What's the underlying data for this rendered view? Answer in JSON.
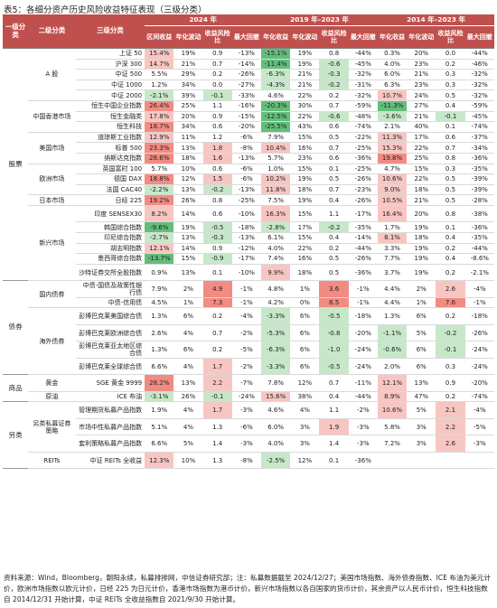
{
  "title": "表5：各细分资产历史风险收益特征表现（三级分类）",
  "header": {
    "groups": [
      "2024 年",
      "2019 年–2023 年",
      "2014 年–2023 年"
    ],
    "col_level1": "一级分类",
    "col_level2": "二级分类",
    "col_level3": "三级分类",
    "metrics": [
      "区间收益",
      "年化波动",
      "收益风险比",
      "最大回撤",
      "年化收益",
      "年化波动",
      "收益风险比",
      "最大回撤",
      "年化收益",
      "年化波动",
      "收益风险比",
      "最大回撤"
    ]
  },
  "rows": [
    {
      "l1": "股票",
      "l2": "A 股",
      "l3": "上证 50",
      "v": [
        "15.4%",
        "19%",
        "0.9",
        "-13%",
        "-15.1%",
        "19%",
        "0.8",
        "-44%",
        "0.3%",
        "20%",
        "0.0",
        "-44%"
      ]
    },
    {
      "l1": "",
      "l2": "",
      "l3": "沪深 300",
      "v": [
        "14.7%",
        "21%",
        "0.7",
        "-14%",
        "-11.4%",
        "19%",
        "-0.6",
        "-45%",
        "4.0%",
        "23%",
        "0.2",
        "-46%"
      ]
    },
    {
      "l1": "",
      "l2": "",
      "l3": "中证 500",
      "v": [
        "5.5%",
        "29%",
        "0.2",
        "-26%",
        "-6.3%",
        "21%",
        "-0.3",
        "-32%",
        "6.0%",
        "21%",
        "0.3",
        "-32%"
      ]
    },
    {
      "l1": "",
      "l2": "",
      "l3": "中证 1000",
      "v": [
        "1.2%",
        "34%",
        "0.0",
        "-27%",
        "-4.3%",
        "21%",
        "-0.2",
        "-31%",
        "6.3%",
        "23%",
        "0.3",
        "-32%"
      ]
    },
    {
      "l1": "",
      "l2": "",
      "l3": "中证 2000",
      "v": [
        "-2.1%",
        "39%",
        "-0.1",
        "-33%",
        "4.6%",
        "22%",
        "0.2",
        "-32%",
        "10.7%",
        "24%",
        "0.5",
        "-32%"
      ]
    },
    {
      "l1": "",
      "l2": "中国香港市场",
      "l3": "恒生中国企业指数",
      "v": [
        "26.4%",
        "25%",
        "1.1",
        "-16%",
        "-20.3%",
        "30%",
        "0.7",
        "-59%",
        "-11.3%",
        "27%",
        "0.4",
        "-59%"
      ]
    },
    {
      "l1": "",
      "l2": "",
      "l3": "恒生金融类",
      "v": [
        "17.8%",
        "20%",
        "0.9",
        "-15%",
        "-12.5%",
        "22%",
        "-0.6",
        "-48%",
        "-3.6%",
        "21%",
        "-0.1",
        "-45%"
      ]
    },
    {
      "l1": "",
      "l2": "",
      "l3": "恒生科技",
      "v": [
        "18.7%",
        "34%",
        "0.6",
        "-20%",
        "-25.5%",
        "43%",
        "0.6",
        "-74%",
        "2.1%",
        "40%",
        "0.1",
        "-74%"
      ]
    },
    {
      "l1": "",
      "l2": "美国市场",
      "l3": "道琼斯工业指数",
      "v": [
        "12.9%",
        "11%",
        "1.2",
        "-6%",
        "7.9%",
        "15%",
        "0.5",
        "-22%",
        "11.3%",
        "17%",
        "0.6",
        "-37%"
      ]
    },
    {
      "l1": "",
      "l2": "",
      "l3": "标普 500",
      "v": [
        "23.3%",
        "13%",
        "1.8",
        "-8%",
        "10.4%",
        "16%",
        "0.7",
        "-25%",
        "15.3%",
        "22%",
        "0.7",
        "-34%"
      ]
    },
    {
      "l1": "",
      "l2": "",
      "l3": "纳斯达克指数",
      "v": [
        "28.6%",
        "18%",
        "1.6",
        "-13%",
        "5.7%",
        "23%",
        "0.6",
        "-36%",
        "19.8%",
        "25%",
        "0.8",
        "-36%"
      ]
    },
    {
      "l1": "",
      "l2": "欧洲市场",
      "l3": "英国富时 100",
      "v": [
        "5.7%",
        "10%",
        "0.6",
        "-6%",
        "1.0%",
        "15%",
        "0.1",
        "-25%",
        "4.7%",
        "15%",
        "0.3",
        "-35%"
      ]
    },
    {
      "l1": "",
      "l2": "",
      "l3": "德国 DAX",
      "v": [
        "18.8%",
        "12%",
        "1.5",
        "-6%",
        "10.2%",
        "19%",
        "0.5",
        "-26%",
        "10.6%",
        "22%",
        "0.5",
        "-39%"
      ]
    },
    {
      "l1": "",
      "l2": "",
      "l3": "法国 CAC40",
      "v": [
        "-2.2%",
        "13%",
        "-0.2",
        "-13%",
        "11.8%",
        "18%",
        "0.7",
        "-23%",
        "9.0%",
        "18%",
        "0.5",
        "-39%"
      ]
    },
    {
      "l1": "",
      "l2": "日本市场",
      "l3": "日经 225",
      "v": [
        "19.2%",
        "26%",
        "0.8",
        "-25%",
        "7.5%",
        "19%",
        "0.4",
        "-26%",
        "10.5%",
        "21%",
        "0.5",
        "-28%"
      ]
    },
    {
      "l1": "",
      "l2": "新兴市场",
      "l3": "印度 SENSEX30",
      "v": [
        "8.2%",
        "14%",
        "0.6",
        "-10%",
        "16.3%",
        "15%",
        "1.1",
        "-17%",
        "16.4%",
        "20%",
        "0.8",
        "-38%"
      ]
    },
    {
      "l1": "",
      "l2": "",
      "l3": "韩国综合指数",
      "v": [
        "-9.6%",
        "19%",
        "-0.5",
        "-18%",
        "-2.8%",
        "17%",
        "-0.2",
        "-35%",
        "1.7%",
        "19%",
        "0.1",
        "-36%"
      ]
    },
    {
      "l1": "",
      "l2": "",
      "l3": "印尼综合指数",
      "v": [
        "-2.7%",
        "13%",
        "-0.3",
        "-13%",
        "6.1%",
        "15%",
        "0.4",
        "-14%",
        "8.1%",
        "18%",
        "0.4",
        "-35%"
      ]
    },
    {
      "l1": "",
      "l2": "",
      "l3": "胡志明指数",
      "v": [
        "12.1%",
        "14%",
        "0.9",
        "-12%",
        "4.0%",
        "22%",
        "0.2",
        "-44%",
        "3.3%",
        "19%",
        "0.2",
        "-44%"
      ]
    },
    {
      "l1": "",
      "l2": "",
      "l3": "墨西哥综合指数",
      "v": [
        "-13.7%",
        "15%",
        "-0.9",
        "-17%",
        "7.4%",
        "16%",
        "0.5",
        "-26%",
        "7.7%",
        "19%",
        "0.4",
        "-8.6%"
      ]
    },
    {
      "l1": "",
      "l2": "",
      "l3": "沙特证券交所全股指数",
      "v": [
        "0.9%",
        "13%",
        "0.1",
        "-10%",
        "9.9%",
        "18%",
        "0.5",
        "-36%",
        "3.7%",
        "19%",
        "0.2",
        "-2.1%"
      ]
    },
    {
      "l1": "债券",
      "l2": "国内债券",
      "l3": "中债-国债及政策性银行债",
      "v": [
        "7.9%",
        "2%",
        "4.9",
        "-1%",
        "4.8%",
        "1%",
        "3.6",
        "-1%",
        "4.4%",
        "2%",
        "2.6",
        "-4%"
      ]
    },
    {
      "l1": "",
      "l2": "",
      "l3": "中债-信用债",
      "v": [
        "4.5%",
        "1%",
        "7.3",
        "-1%",
        "4.2%",
        "0%",
        "8.5",
        "-1%",
        "4.4%",
        "1%",
        "7.6",
        "-1%"
      ]
    },
    {
      "l1": "",
      "l2": "海外债券",
      "l3": "彭博巴克莱美国综合债",
      "v": [
        "1.3%",
        "6%",
        "0.2",
        "-4%",
        "-3.3%",
        "6%",
        "-0.5",
        "-18%",
        "1.3%",
        "6%",
        "0.2",
        "-18%"
      ]
    },
    {
      "l1": "",
      "l2": "",
      "l3": "彭博巴克莱欧洲综合债",
      "v": [
        "2.6%",
        "4%",
        "0.7",
        "-2%",
        "-5.3%",
        "6%",
        "-0.8",
        "-20%",
        "-1.1%",
        "5%",
        "-0.2",
        "-26%"
      ]
    },
    {
      "l1": "",
      "l2": "",
      "l3": "彭博巴克莱亚太地区综合债",
      "v": [
        "1.3%",
        "6%",
        "0.2",
        "-5%",
        "-6.3%",
        "6%",
        "-1.0",
        "-24%",
        "-0.6%",
        "6%",
        "-0.1",
        "-24%"
      ]
    },
    {
      "l1": "",
      "l2": "",
      "l3": "彭博巴克莱全球综合债",
      "v": [
        "6.6%",
        "4%",
        "1.7",
        "-2%",
        "-3.3%",
        "6%",
        "-0.5",
        "-24%",
        "2.0%",
        "6%",
        "0.3",
        "-24%"
      ]
    },
    {
      "l1": "商品",
      "l2": "黄金",
      "l3": "SGE 黄金 9999",
      "v": [
        "28.2%",
        "13%",
        "2.2",
        "-7%",
        "7.8%",
        "12%",
        "0.7",
        "-11%",
        "12.1%",
        "13%",
        "0.9",
        "-20%"
      ]
    },
    {
      "l1": "",
      "l2": "原油",
      "l3": "ICE 布油",
      "v": [
        "-3.1%",
        "26%",
        "-0.1",
        "-24%",
        "15.6%",
        "38%",
        "0.4",
        "-44%",
        "8.9%",
        "47%",
        "0.2",
        "-74%"
      ]
    },
    {
      "l1": "另类",
      "l2": "另类私募证券策略",
      "l3": "管理期货私募产品指数",
      "v": [
        "1.9%",
        "4%",
        "1.7",
        "-3%",
        "4.6%",
        "4%",
        "1.1",
        "-2%",
        "10.6%",
        "5%",
        "2.1",
        "-4%"
      ]
    },
    {
      "l1": "",
      "l2": "",
      "l3": "市场中性私募产品指数",
      "v": [
        "5.1%",
        "4%",
        "1.3",
        "-6%",
        "6.0%",
        "3%",
        "1.9",
        "-3%",
        "5.8%",
        "3%",
        "2.2",
        "-5%"
      ]
    },
    {
      "l1": "",
      "l2": "",
      "l3": "套利策略私募产品指数",
      "v": [
        "6.6%",
        "5%",
        "1.4",
        "-3%",
        "4.0%",
        "3%",
        "1.4",
        "-3%",
        "7.2%",
        "3%",
        "2.6",
        "-3%"
      ]
    },
    {
      "l1": "",
      "l2": "REITs",
      "l3": "中证 REITs 全收益",
      "v": [
        "12.3%",
        "10%",
        "1.3",
        "-8%",
        "-2.5%",
        "12%",
        "0.1",
        "-36%",
        "",
        "",
        "",
        ""
      ]
    }
  ],
  "footnote": "资料来源：Wind，Bloomberg，朝阳永续，私募排排网，中信证券研究部；注：私募数据截至 2024/12/27；美国市场指数、海外债券指数、ICE 布油为美元计价，欧洲市场指数以欧元计价，日经 225 为日元计价，香港市场指数为港币计价，新兴市场指数以各自国家的货币计价，其余资产以人民币计价，恒生科技指数自 2014/12/31 开始计算，中证 REITs 全收益指数自 2021/9/30 开始计算。",
  "colors": {
    "header": "#c0504d",
    "pos_strong": "#f28b82",
    "pos_mid": "#f8c6c2",
    "neg_strong": "#63be7b",
    "neg_mid": "#c6e8c9"
  }
}
